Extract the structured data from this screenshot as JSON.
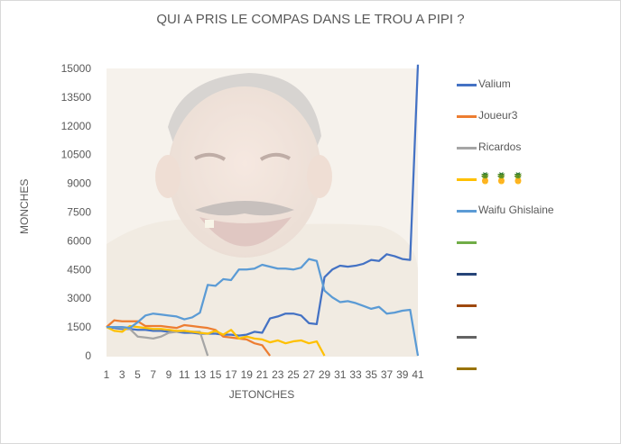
{
  "chart_data": {
    "type": "line",
    "title": "QUI A PRIS LE COMPAS DANS LE TROU A PIPI ?",
    "xlabel": "JETONCHES",
    "ylabel": "MONCHES",
    "ylim": [
      0,
      15000
    ],
    "yticks": [
      "0",
      "1500",
      "3000",
      "4500",
      "6000",
      "7500",
      "9000",
      "10500",
      "12000",
      "13500",
      "15000"
    ],
    "xticks": [
      "1",
      "3",
      "5",
      "7",
      "9",
      "11",
      "13",
      "15",
      "17",
      "19",
      "21",
      "23",
      "25",
      "27",
      "29",
      "31",
      "33",
      "35",
      "37",
      "39",
      "41"
    ],
    "grid": false,
    "legend_position": "right",
    "background_image": "laughing-man-photo",
    "series": [
      {
        "name": "Valium",
        "color": "#4472c4",
        "x": [
          1,
          2,
          3,
          4,
          5,
          6,
          7,
          8,
          9,
          10,
          11,
          12,
          13,
          14,
          15,
          16,
          17,
          18,
          19,
          20,
          21,
          22,
          23,
          24,
          25,
          26,
          27,
          28,
          29,
          30,
          31,
          32,
          33,
          34,
          35,
          36,
          37,
          38,
          39,
          40,
          41
        ],
        "values": [
          1500,
          1450,
          1400,
          1400,
          1350,
          1350,
          1300,
          1300,
          1250,
          1250,
          1200,
          1200,
          1150,
          1150,
          1150,
          1100,
          1100,
          1050,
          1100,
          1250,
          1200,
          1950,
          2050,
          2200,
          2200,
          2100,
          1700,
          1650,
          4100,
          4500,
          4700,
          4650,
          4700,
          4800,
          5000,
          4950,
          5300,
          5200,
          5050,
          5000,
          15200
        ]
      },
      {
        "name": "Joueur3",
        "color": "#ed7d31",
        "x": [
          1,
          2,
          3,
          4,
          5,
          6,
          7,
          8,
          9,
          10,
          11,
          12,
          13,
          14,
          15,
          16,
          17,
          18,
          19,
          20,
          21,
          22
        ],
        "values": [
          1500,
          1850,
          1800,
          1800,
          1800,
          1550,
          1550,
          1550,
          1500,
          1450,
          1600,
          1550,
          1500,
          1450,
          1350,
          1000,
          950,
          900,
          850,
          650,
          550,
          0
        ]
      },
      {
        "name": "Ricardos",
        "color": "#a5a5a5",
        "x": [
          1,
          2,
          3,
          4,
          5,
          6,
          7,
          8,
          9,
          10,
          11,
          12,
          13,
          14
        ],
        "values": [
          1500,
          1500,
          1450,
          1400,
          1000,
          950,
          900,
          1000,
          1200,
          1250,
          1300,
          1250,
          1250,
          0
        ]
      },
      {
        "name": "🍍 🍍 🍍",
        "color": "#ffc000",
        "x": [
          1,
          2,
          3,
          4,
          5,
          6,
          7,
          8,
          9,
          10,
          11,
          12,
          13,
          14,
          15,
          16,
          17,
          18,
          19,
          20,
          21,
          22,
          23,
          24,
          25,
          26,
          27,
          28,
          29
        ],
        "values": [
          1500,
          1300,
          1250,
          1550,
          1500,
          1450,
          1400,
          1400,
          1350,
          1300,
          1300,
          1250,
          1200,
          1150,
          1300,
          1100,
          1350,
          900,
          1000,
          900,
          850,
          700,
          800,
          650,
          750,
          800,
          650,
          750,
          0
        ]
      },
      {
        "name": "Waifu Ghislaine",
        "color": "#5b9bd5",
        "x": [
          1,
          2,
          3,
          4,
          5,
          6,
          7,
          8,
          9,
          10,
          11,
          12,
          13,
          14,
          15,
          16,
          17,
          18,
          19,
          20,
          21,
          22,
          23,
          24,
          25,
          26,
          27,
          28,
          29,
          30,
          31,
          32,
          33,
          34,
          35,
          36,
          37,
          38,
          39,
          40,
          41
        ],
        "values": [
          1500,
          1500,
          1500,
          1450,
          1750,
          2100,
          2200,
          2150,
          2100,
          2050,
          1900,
          2000,
          2250,
          3700,
          3650,
          4000,
          3950,
          4500,
          4500,
          4550,
          4750,
          4650,
          4550,
          4550,
          4500,
          4600,
          5050,
          4950,
          3400,
          3050,
          2800,
          2850,
          2750,
          2600,
          2450,
          2550,
          2200,
          2250,
          2350,
          2400,
          0
        ]
      },
      {
        "name": "",
        "color": "#70ad47",
        "values": []
      },
      {
        "name": "",
        "color": "#264478",
        "values": []
      },
      {
        "name": "",
        "color": "#9e480e",
        "values": []
      },
      {
        "name": "",
        "color": "#636363",
        "values": []
      },
      {
        "name": "",
        "color": "#997300",
        "values": []
      }
    ]
  }
}
